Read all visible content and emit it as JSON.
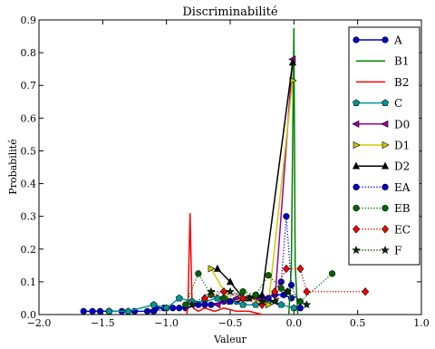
{
  "chart_data": {
    "type": "line",
    "title": "Discriminabilité",
    "xlabel": "Valeur",
    "ylabel": "Probabilité",
    "xlim": [
      -2.0,
      1.0
    ],
    "ylim": [
      0.0,
      0.9
    ],
    "x_ticks": [
      -2.0,
      -1.5,
      -1.0,
      -0.5,
      0.0,
      0.5,
      1.0
    ],
    "x_tick_labels": [
      "−2.0",
      "−1.5",
      "−1.0",
      "−0.5",
      "0.0",
      "0.5",
      "1.0"
    ],
    "y_ticks": [
      0.0,
      0.1,
      0.2,
      0.3,
      0.4,
      0.5,
      0.6,
      0.7,
      0.8,
      0.9
    ],
    "y_tick_labels": [
      "0.0",
      "0.1",
      "0.2",
      "0.3",
      "0.4",
      "0.5",
      "0.6",
      "0.7",
      "0.8",
      "0.9"
    ],
    "grid": false,
    "legend_position": "top-right",
    "series": [
      {
        "name": "A",
        "color": "#0000cc",
        "marker": "circle",
        "line": "solid",
        "x": [
          -1.65,
          -1.58,
          -1.52,
          -1.45,
          -1.35,
          -1.25,
          -1.15,
          -1.08,
          -1.02,
          -0.95,
          -0.85,
          -0.75,
          -0.65,
          -0.55,
          -0.45,
          -0.35,
          -0.25,
          -0.15,
          -0.08,
          -0.02
        ],
        "y": [
          0.01,
          0.01,
          0.01,
          0.01,
          0.01,
          0.01,
          0.01,
          0.02,
          0.02,
          0.02,
          0.02,
          0.03,
          0.03,
          0.04,
          0.04,
          0.05,
          0.05,
          0.06,
          0.06,
          0.05
        ]
      },
      {
        "name": "B1",
        "color": "#008000",
        "marker": "none",
        "line": "solid",
        "x": [
          -0.04,
          -0.02,
          0.0,
          0.01,
          0.03
        ],
        "y": [
          0.0,
          0.15,
          0.875,
          0.15,
          0.0
        ]
      },
      {
        "name": "B2",
        "color": "#ff0000",
        "marker": "none",
        "line": "solid",
        "x": [
          -0.84,
          -0.83,
          -0.815,
          -0.8,
          -0.79,
          -0.75,
          -0.7,
          -0.62,
          -0.55,
          -0.45,
          -0.35,
          -0.25
        ],
        "y": [
          0.0,
          0.05,
          0.31,
          0.05,
          0.02,
          0.01,
          0.02,
          0.01,
          0.02,
          0.01,
          0.01,
          0.0
        ]
      },
      {
        "name": "C",
        "color": "#009999",
        "marker": "pentagon",
        "line": "solid",
        "x": [
          -1.45,
          -1.3,
          -1.1,
          -1.0,
          -0.9,
          -0.8,
          -0.7,
          -0.6,
          -0.5,
          -0.4,
          -0.3,
          -0.2,
          -0.1,
          0.0
        ],
        "y": [
          0.01,
          0.01,
          0.03,
          0.02,
          0.05,
          0.04,
          0.04,
          0.05,
          0.04,
          0.03,
          0.03,
          0.04,
          0.03,
          0.02
        ]
      },
      {
        "name": "D0",
        "color": "#990099",
        "marker": "triangle-left",
        "line": "solid",
        "x": [
          -0.6,
          -0.45,
          -0.3,
          -0.15,
          -0.01
        ],
        "y": [
          0.03,
          0.05,
          0.05,
          0.04,
          0.78
        ]
      },
      {
        "name": "D1",
        "color": "#cccc00",
        "marker": "triangle-right",
        "line": "solid",
        "x": [
          -0.65,
          -0.5,
          -0.35,
          -0.2,
          -0.01
        ],
        "y": [
          0.14,
          0.04,
          0.05,
          0.03,
          0.715
        ]
      },
      {
        "name": "D2",
        "color": "#000000",
        "marker": "triangle-up",
        "line": "solid",
        "x": [
          -0.6,
          -0.5,
          -0.4,
          -0.25,
          -0.01
        ],
        "y": [
          0.14,
          0.1,
          0.05,
          0.06,
          0.77
        ]
      },
      {
        "name": "EA",
        "color": "#0000cc",
        "marker": "circle",
        "line": "dotted",
        "x": [
          -1.1,
          -0.9,
          -0.7,
          -0.5,
          -0.3,
          -0.2,
          -0.1,
          -0.06,
          -0.02,
          0.05
        ],
        "y": [
          0.01,
          0.02,
          0.03,
          0.04,
          0.06,
          0.05,
          0.1,
          0.3,
          0.09,
          0.02
        ]
      },
      {
        "name": "EB",
        "color": "#006600",
        "marker": "circle",
        "line": "dotted",
        "x": [
          -0.85,
          -0.75,
          -0.65,
          -0.55,
          -0.4,
          -0.3,
          -0.2,
          -0.1,
          -0.05,
          0.05,
          0.3
        ],
        "y": [
          0.03,
          0.125,
          0.06,
          0.05,
          0.07,
          0.06,
          0.12,
          0.08,
          0.07,
          0.04,
          0.125
        ]
      },
      {
        "name": "EC",
        "color": "#ff0000",
        "marker": "diamond",
        "line": "dotted",
        "x": [
          -0.7,
          -0.55,
          -0.4,
          -0.25,
          -0.15,
          -0.06,
          0.05,
          0.1,
          0.56
        ],
        "y": [
          0.05,
          0.07,
          0.05,
          0.03,
          0.07,
          0.14,
          0.14,
          0.07,
          0.07
        ]
      },
      {
        "name": "F",
        "color": "#003300",
        "marker": "star",
        "line": "dotted",
        "x": [
          -0.8,
          -0.65,
          -0.5,
          -0.35,
          -0.25,
          -0.15,
          -0.05,
          0.1
        ],
        "y": [
          0.03,
          0.07,
          0.07,
          0.05,
          0.04,
          0.04,
          0.07,
          0.03
        ]
      }
    ]
  }
}
